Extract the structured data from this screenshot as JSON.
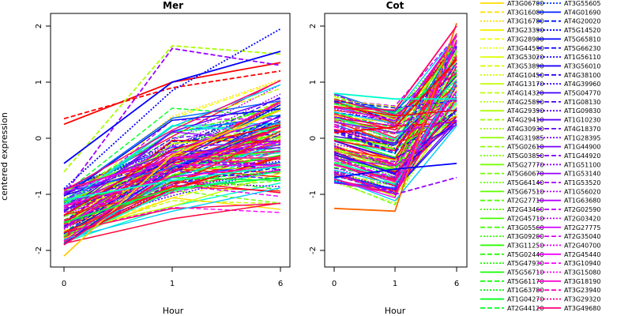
{
  "chart_data": [
    {
      "type": "line",
      "title": "Mer",
      "xlabel": "Hour",
      "ylabel": "centered expression",
      "x": [
        0,
        1,
        6
      ],
      "xticks": [
        "0",
        "1",
        "6"
      ],
      "yticks": [
        -2,
        -1,
        0,
        1,
        2
      ],
      "ylim": [
        -2.2,
        2.05
      ],
      "grid": false,
      "representative_profiles": [
        {
          "color": "#ff0000",
          "dash": "solid",
          "values": [
            0.25,
            1.0,
            1.35
          ]
        },
        {
          "color": "#ff0000",
          "dash": "dashed",
          "values": [
            0.35,
            0.9,
            1.2
          ]
        },
        {
          "color": "#aaff00",
          "dash": "dashed",
          "values": [
            -0.6,
            1.65,
            1.5
          ]
        },
        {
          "color": "#9900ff",
          "dash": "dashed",
          "values": [
            -1.0,
            1.6,
            1.3
          ]
        },
        {
          "color": "#0000ff",
          "dash": "solid",
          "values": [
            -0.45,
            1.0,
            1.55
          ]
        },
        {
          "color": "#0000ff",
          "dash": "dotted",
          "values": [
            -0.9,
            0.85,
            1.95
          ]
        },
        {
          "color": "#ffcc00",
          "dash": "solid",
          "values": [
            -2.1,
            -0.3,
            0.5
          ]
        },
        {
          "color": "#ff0066",
          "dash": "solid",
          "values": [
            -1.9,
            -0.6,
            0.2
          ]
        },
        {
          "color": "#00ff44",
          "dash": "solid",
          "values": [
            -1.5,
            -0.9,
            -0.7
          ]
        },
        {
          "color": "#00ffcc",
          "dash": "solid",
          "values": [
            -1.1,
            -0.75,
            -0.5
          ]
        }
      ]
    },
    {
      "type": "line",
      "title": "Cot",
      "xlabel": "Hour",
      "x": [
        0,
        1,
        6
      ],
      "xticks": [
        "0",
        "1",
        "6"
      ],
      "yticks": [
        -2,
        -1,
        0,
        1,
        2
      ],
      "ylim": [
        -2.2,
        2.05
      ],
      "grid": false,
      "representative_profiles": [
        {
          "color": "#ff6600",
          "dash": "solid",
          "values": [
            -1.25,
            -1.3,
            2.05
          ]
        },
        {
          "color": "#ff0066",
          "dash": "solid",
          "values": [
            0.55,
            0.5,
            2.0
          ]
        },
        {
          "color": "#00ffcc",
          "dash": "solid",
          "values": [
            0.8,
            0.7,
            0.7
          ]
        },
        {
          "color": "#0000ff",
          "dash": "solid",
          "values": [
            -0.7,
            -0.55,
            -0.45
          ]
        },
        {
          "color": "#9900ff",
          "dash": "dashed",
          "values": [
            -0.6,
            -1.0,
            -0.7
          ]
        },
        {
          "color": "#ff0000",
          "dash": "solid",
          "values": [
            0.1,
            0.2,
            1.4
          ]
        }
      ]
    }
  ],
  "legend": {
    "placement": "right",
    "columns": [
      [
        {
          "label": "AT3G06700",
          "color": "#ffdd00",
          "dash": "solid"
        },
        {
          "label": "AT3G16080",
          "color": "#ffdd00",
          "dash": "dashed"
        },
        {
          "label": "AT3G16780",
          "color": "#ffdd00",
          "dash": "dotted"
        },
        {
          "label": "AT3G23390",
          "color": "#f2f200",
          "dash": "solid"
        },
        {
          "label": "AT3G28900",
          "color": "#eeff00",
          "dash": "dashed"
        },
        {
          "label": "AT3G44590",
          "color": "#e6ff00",
          "dash": "dotted"
        },
        {
          "label": "AT3G53020",
          "color": "#ddff00",
          "dash": "solid"
        },
        {
          "label": "AT3G53890",
          "color": "#d4ff00",
          "dash": "dashed"
        },
        {
          "label": "AT4G10450",
          "color": "#ccff00",
          "dash": "dotted"
        },
        {
          "label": "AT4G13170",
          "color": "#c4ff00",
          "dash": "solid"
        },
        {
          "label": "AT4G14320",
          "color": "#bbff00",
          "dash": "dashed"
        },
        {
          "label": "AT4G25890",
          "color": "#b3ff00",
          "dash": "dotted"
        },
        {
          "label": "AT4G29390",
          "color": "#aaff00",
          "dash": "solid"
        },
        {
          "label": "AT4G29410",
          "color": "#a2ff00",
          "dash": "dashed"
        },
        {
          "label": "AT4G30930",
          "color": "#99ff00",
          "dash": "dotted"
        },
        {
          "label": "AT4G31985",
          "color": "#91ff00",
          "dash": "solid"
        },
        {
          "label": "AT5G02610",
          "color": "#88ff00",
          "dash": "dashed"
        },
        {
          "label": "AT5G03850",
          "color": "#80ff00",
          "dash": "dotted"
        },
        {
          "label": "AT5G27770",
          "color": "#77ff00",
          "dash": "solid"
        },
        {
          "label": "AT5G60670",
          "color": "#6fff00",
          "dash": "dashed"
        },
        {
          "label": "AT5G64140",
          "color": "#66ff00",
          "dash": "dotted"
        },
        {
          "label": "AT5G67510",
          "color": "#5eff00",
          "dash": "solid"
        },
        {
          "label": "AT2G27710",
          "color": "#55ff00",
          "dash": "dashed"
        },
        {
          "label": "AT2G43460",
          "color": "#4dff00",
          "dash": "dotted"
        },
        {
          "label": "AT2G45710",
          "color": "#44ff00",
          "dash": "solid"
        },
        {
          "label": "AT3G05560",
          "color": "#3cff00",
          "dash": "dashed"
        },
        {
          "label": "AT3G09200",
          "color": "#33ff00",
          "dash": "dotted"
        },
        {
          "label": "AT3G11250",
          "color": "#2bff00",
          "dash": "solid"
        },
        {
          "label": "AT5G02440",
          "color": "#22ff00",
          "dash": "dashed"
        },
        {
          "label": "AT5G47930",
          "color": "#1aff00",
          "dash": "dotted"
        },
        {
          "label": "AT5G56710",
          "color": "#11ff00",
          "dash": "solid"
        },
        {
          "label": "AT5G61170",
          "color": "#09ff00",
          "dash": "dashed"
        },
        {
          "label": "AT1G63780",
          "color": "#00ff11",
          "dash": "dotted"
        },
        {
          "label": "AT1G04270",
          "color": "#00ff1a",
          "dash": "solid"
        },
        {
          "label": "AT2G44120",
          "color": "#00ff22",
          "dash": "dashed"
        }
      ],
      [
        {
          "label": "AT3G55605",
          "color": "#0033ff",
          "dash": "dotted"
        },
        {
          "label": "AT4G01690",
          "color": "#0022ff",
          "dash": "solid"
        },
        {
          "label": "AT4G20020",
          "color": "#0011ff",
          "dash": "dashed"
        },
        {
          "label": "AT5G14520",
          "color": "#0000ff",
          "dash": "dotted"
        },
        {
          "label": "AT5G65810",
          "color": "#0000ff",
          "dash": "solid"
        },
        {
          "label": "AT5G66230",
          "color": "#0a00ff",
          "dash": "dashed"
        },
        {
          "label": "AT1G56110",
          "color": "#1400ff",
          "dash": "dotted"
        },
        {
          "label": "AT3G56010",
          "color": "#1e00ff",
          "dash": "solid"
        },
        {
          "label": "AT4G38100",
          "color": "#2800ff",
          "dash": "dashed"
        },
        {
          "label": "AT4G39960",
          "color": "#3200ff",
          "dash": "dotted"
        },
        {
          "label": "AT5G04770",
          "color": "#3c00ff",
          "dash": "solid"
        },
        {
          "label": "AT1G08130",
          "color": "#4600ff",
          "dash": "dashed"
        },
        {
          "label": "AT1G09830",
          "color": "#5000ff",
          "dash": "dotted"
        },
        {
          "label": "AT1G10230",
          "color": "#5a00ff",
          "dash": "solid"
        },
        {
          "label": "AT4G18370",
          "color": "#6400ff",
          "dash": "dashed"
        },
        {
          "label": "AT1G28395",
          "color": "#6e00ff",
          "dash": "dotted"
        },
        {
          "label": "AT1G44900",
          "color": "#7800ff",
          "dash": "solid"
        },
        {
          "label": "AT1G44920",
          "color": "#8200ff",
          "dash": "dashed"
        },
        {
          "label": "AT1G51100",
          "color": "#8c00ff",
          "dash": "dotted"
        },
        {
          "label": "AT1G53140",
          "color": "#9600ff",
          "dash": "solid"
        },
        {
          "label": "AT1G53520",
          "color": "#a000ff",
          "dash": "dashed"
        },
        {
          "label": "AT1G56020",
          "color": "#aa00ff",
          "dash": "dotted"
        },
        {
          "label": "AT1G63680",
          "color": "#b400ff",
          "dash": "solid"
        },
        {
          "label": "AT2G02590",
          "color": "#be00ff",
          "dash": "dashed"
        },
        {
          "label": "AT2G03420",
          "color": "#c800ff",
          "dash": "dotted"
        },
        {
          "label": "AT2G27775",
          "color": "#d200ff",
          "dash": "solid"
        },
        {
          "label": "AT2G35040",
          "color": "#dc00ff",
          "dash": "dashed"
        },
        {
          "label": "AT2G40700",
          "color": "#e600ff",
          "dash": "dotted"
        },
        {
          "label": "AT2G45440",
          "color": "#f000ff",
          "dash": "solid"
        },
        {
          "label": "AT3G10940",
          "color": "#fa00ff",
          "dash": "dashed"
        },
        {
          "label": "AT3G15080",
          "color": "#ff00f0",
          "dash": "dotted"
        },
        {
          "label": "AT3G18190",
          "color": "#ff00d2",
          "dash": "solid"
        },
        {
          "label": "AT3G23940",
          "color": "#ff00b4",
          "dash": "dashed"
        },
        {
          "label": "AT3G29320",
          "color": "#ff0096",
          "dash": "dotted"
        },
        {
          "label": "AT3G49680",
          "color": "#ff0078",
          "dash": "solid"
        }
      ]
    ]
  }
}
